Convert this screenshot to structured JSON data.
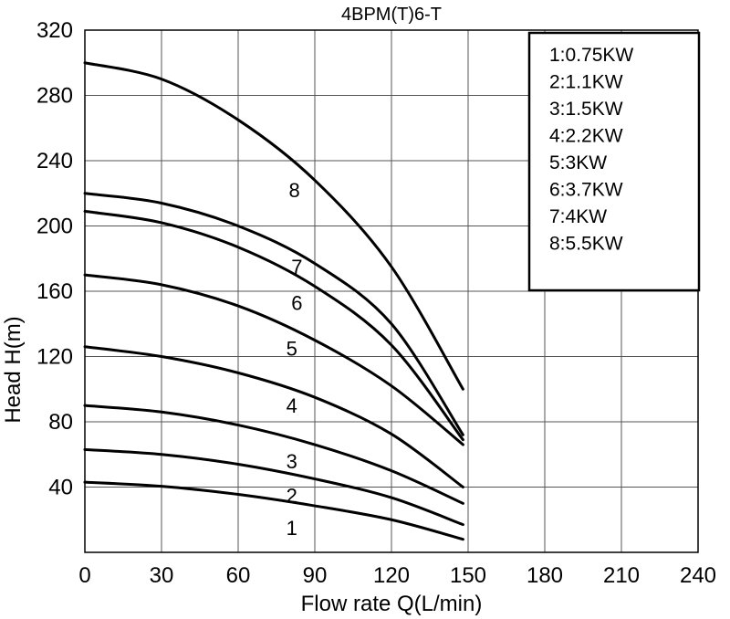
{
  "chart_data": {
    "type": "line",
    "title": "4BPM(T)6-T",
    "xlabel": "Flow rate Q(L/min)",
    "ylabel": "Head H(m)",
    "xlim": [
      0,
      240
    ],
    "ylim": [
      0,
      320
    ],
    "x_ticks": [
      "0",
      "30",
      "60",
      "90",
      "120",
      "150",
      "180",
      "210",
      "240"
    ],
    "y_ticks": [
      "40",
      "80",
      "120",
      "160",
      "200",
      "240",
      "280",
      "320"
    ],
    "grid": true,
    "legend": {
      "placement": "top-right",
      "entries": [
        "1:0.75KW",
        "2:1.1KW",
        "3:1.5KW",
        "4:2.2KW",
        "5:3KW",
        "6:3.7KW",
        "7:4KW",
        "8:5.5KW"
      ]
    },
    "series": [
      {
        "name": "1",
        "x": [
          0,
          30,
          60,
          90,
          120,
          148
        ],
        "y": [
          43,
          40.5,
          35.5,
          28.5,
          20,
          8
        ]
      },
      {
        "name": "2",
        "x": [
          0,
          30,
          60,
          90,
          120,
          148
        ],
        "y": [
          63,
          60,
          54,
          45,
          33.5,
          17
        ]
      },
      {
        "name": "3",
        "x": [
          0,
          30,
          60,
          90,
          120,
          148
        ],
        "y": [
          90,
          86,
          78,
          66,
          50,
          30
        ]
      },
      {
        "name": "4",
        "x": [
          0,
          30,
          60,
          90,
          120,
          148
        ],
        "y": [
          126,
          120,
          110,
          95,
          72.5,
          40
        ]
      },
      {
        "name": "5",
        "x": [
          0,
          30,
          60,
          90,
          120,
          148
        ],
        "y": [
          170,
          164,
          151,
          130,
          102,
          66
        ]
      },
      {
        "name": "6",
        "x": [
          0,
          30,
          60,
          90,
          120,
          148
        ],
        "y": [
          209,
          202,
          187,
          163,
          127,
          69
        ]
      },
      {
        "name": "7",
        "x": [
          0,
          30,
          60,
          90,
          120,
          148
        ],
        "y": [
          220,
          214,
          200,
          177,
          140,
          72
        ]
      },
      {
        "name": "8",
        "x": [
          0,
          30,
          60,
          90,
          120,
          148
        ],
        "y": [
          300,
          290,
          265,
          228,
          175,
          100
        ]
      }
    ],
    "curve_labels": [
      {
        "text": "1",
        "x": 81,
        "y": 15
      },
      {
        "text": "2",
        "x": 81,
        "y": 35
      },
      {
        "text": "3",
        "x": 81,
        "y": 56
      },
      {
        "text": "4",
        "x": 81,
        "y": 90
      },
      {
        "text": "5",
        "x": 81,
        "y": 125
      },
      {
        "text": "6",
        "x": 83,
        "y": 153
      },
      {
        "text": "7",
        "x": 83,
        "y": 175
      },
      {
        "text": "8",
        "x": 82,
        "y": 222
      }
    ]
  }
}
